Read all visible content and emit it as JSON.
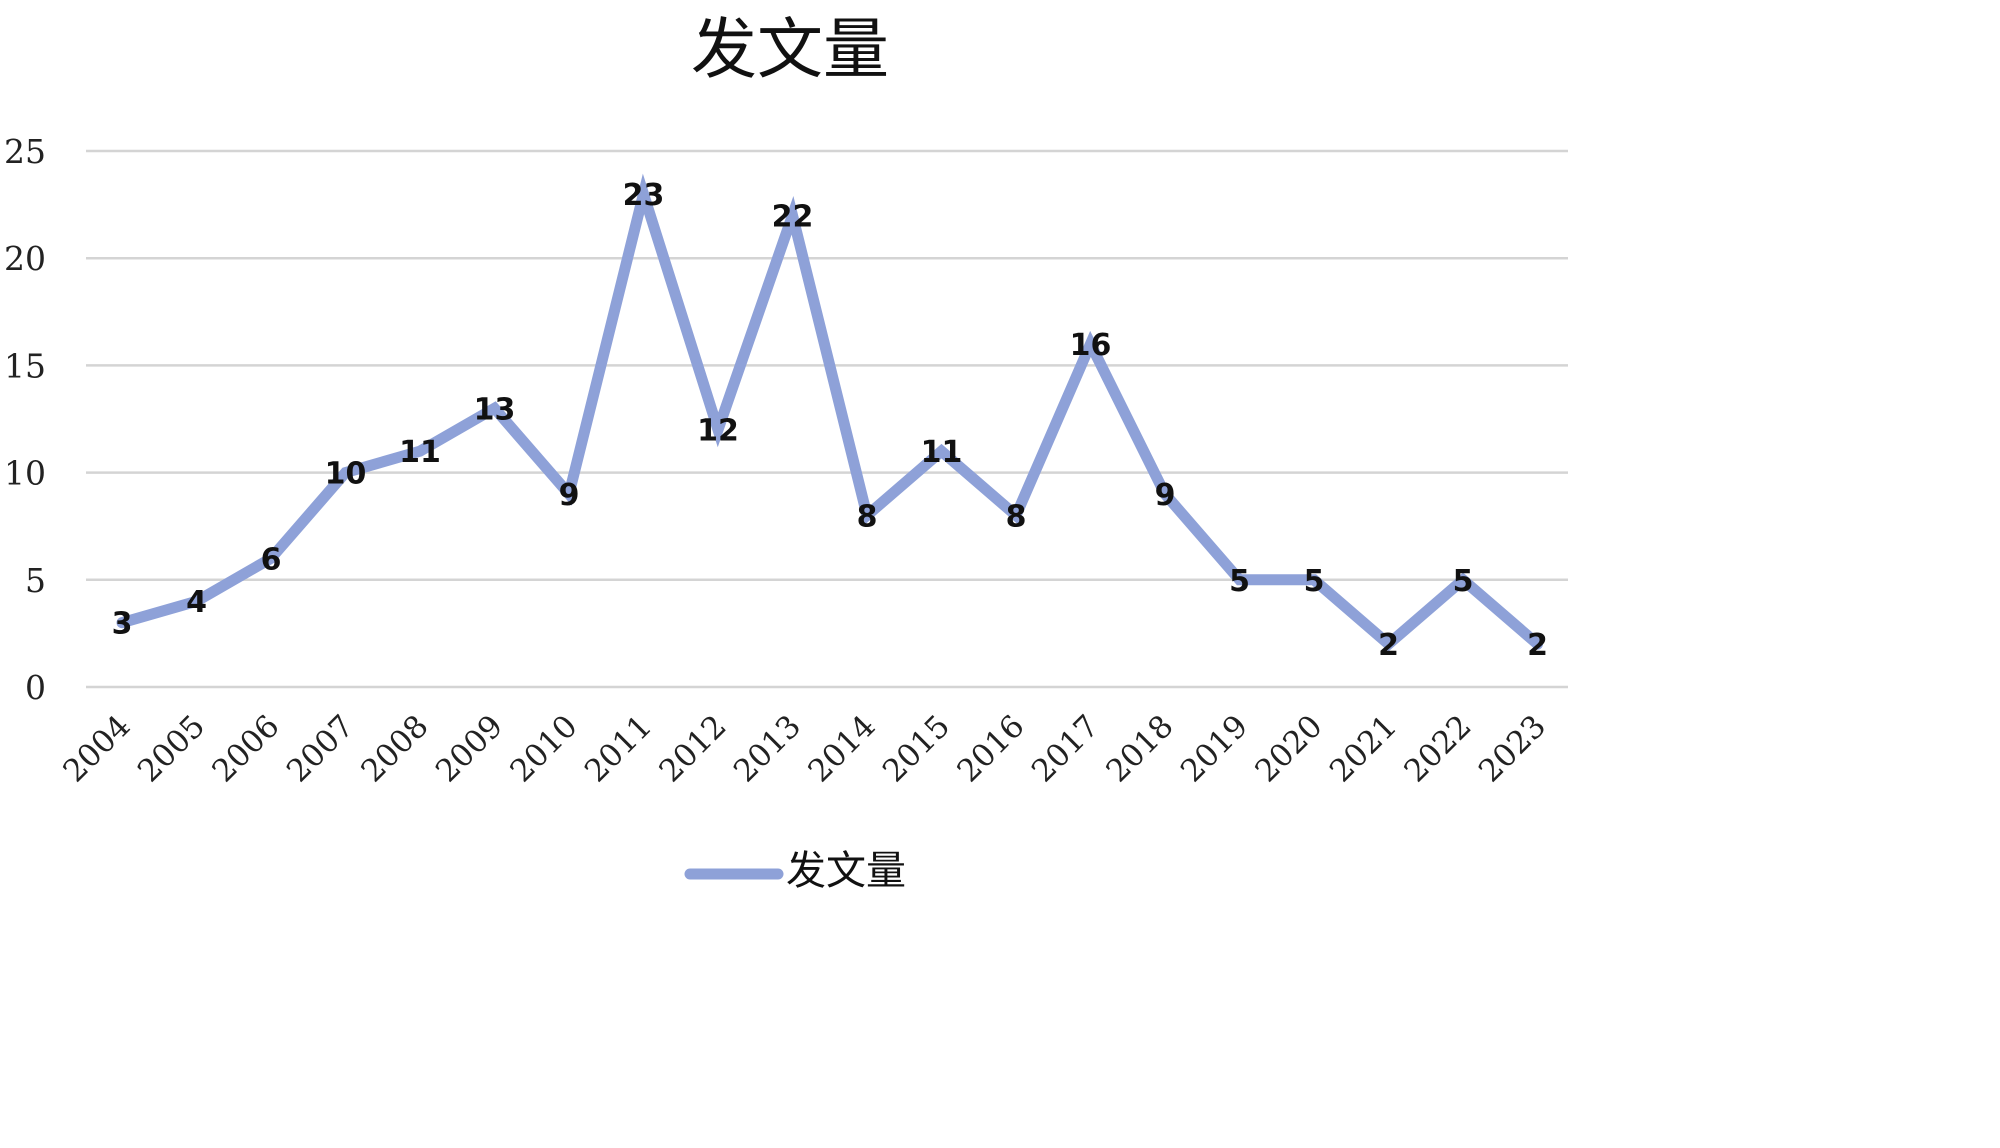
{
  "chart_data": {
    "type": "line",
    "title": "发文量",
    "xlabel": "",
    "ylabel": "",
    "categories": [
      "2004",
      "2005",
      "2006",
      "2007",
      "2008",
      "2009",
      "2010",
      "2011",
      "2012",
      "2013",
      "2014",
      "2015",
      "2016",
      "2017",
      "2018",
      "2019",
      "2020",
      "2021",
      "2022",
      "2023"
    ],
    "series": [
      {
        "name": "发文量",
        "values": [
          3,
          4,
          6,
          10,
          11,
          13,
          9,
          23,
          12,
          22,
          8,
          11,
          8,
          16,
          9,
          5,
          5,
          2,
          5,
          2
        ],
        "color": "#8ea1d8"
      }
    ],
    "ylim": [
      0,
      25
    ],
    "yticks": [
      "0",
      "5",
      "10",
      "15",
      "20",
      "25"
    ],
    "grid": true,
    "legend": "bottom",
    "data_labels": true
  }
}
